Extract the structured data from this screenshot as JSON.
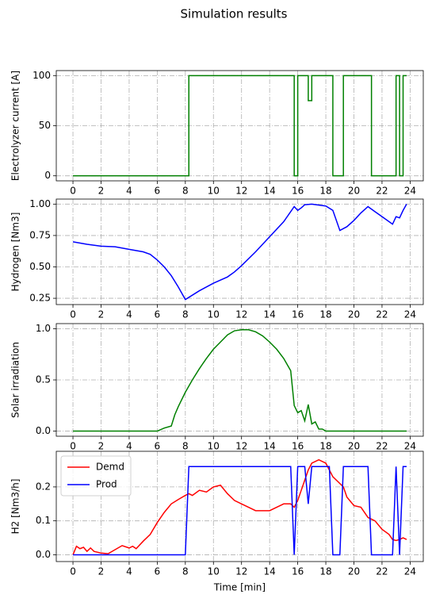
{
  "title": "Simulation results",
  "chart_data": [
    {
      "type": "step",
      "ylabel": "Electrolyzer current [A]",
      "x": [
        0,
        8.25,
        15.75,
        16.0,
        16.75,
        17.0,
        18.5,
        19.25,
        21.25,
        23.0,
        23.25,
        23.5,
        23.75
      ],
      "values": [
        0,
        100,
        0,
        100,
        75,
        100,
        0,
        100,
        0,
        100,
        0,
        100,
        100
      ],
      "color": "#008000",
      "grid": true,
      "xlim": [
        -1.1875,
        24.9375
      ],
      "xticks": [
        0,
        2,
        4,
        6,
        8,
        10,
        12,
        14,
        16,
        18,
        20,
        22,
        24
      ],
      "ylim": [
        -5,
        105
      ],
      "yticks": [
        0,
        50,
        100
      ]
    },
    {
      "type": "line",
      "ylabel": "Hydrogen [Nm3]",
      "x": [
        0,
        1,
        2,
        3,
        4,
        5,
        5.5,
        6,
        6.5,
        7,
        7.5,
        8,
        9,
        10,
        11,
        11.5,
        12,
        13,
        14,
        15,
        15.75,
        16,
        16.25,
        16.5,
        17,
        18,
        18.5,
        19,
        19.5,
        20,
        20.5,
        21,
        21.5,
        22,
        22.75,
        23,
        23.25,
        23.5,
        23.75
      ],
      "values": [
        0.7,
        0.68,
        0.665,
        0.66,
        0.64,
        0.62,
        0.6,
        0.555,
        0.5,
        0.43,
        0.34,
        0.24,
        0.31,
        0.37,
        0.42,
        0.46,
        0.51,
        0.62,
        0.74,
        0.86,
        0.98,
        0.95,
        0.97,
        0.995,
        1.0,
        0.985,
        0.95,
        0.79,
        0.82,
        0.87,
        0.93,
        0.98,
        0.94,
        0.9,
        0.84,
        0.9,
        0.89,
        0.95,
        1.0
      ],
      "color": "#0000ff",
      "grid": true,
      "xlim": [
        -1.1875,
        24.9375
      ],
      "xticks": [
        0,
        2,
        4,
        6,
        8,
        10,
        12,
        14,
        16,
        18,
        20,
        22,
        24
      ],
      "ylim": [
        0.2,
        1.04
      ],
      "yticks": [
        0.25,
        {
          "value": 0.5,
          "label": "0.50"
        },
        0.75,
        {
          "value": 1,
          "label": "1.00"
        }
      ]
    },
    {
      "type": "line",
      "ylabel": "Solar irradiation",
      "x": [
        0,
        6,
        6.5,
        7,
        7.25,
        7.5,
        8,
        8.5,
        9,
        9.5,
        10,
        10.5,
        11,
        11.5,
        12,
        12.5,
        13,
        13.5,
        14,
        14.5,
        15,
        15.5,
        15.75,
        16,
        16.25,
        16.5,
        16.75,
        17,
        17.25,
        17.5,
        17.75,
        18,
        23.75
      ],
      "values": [
        0,
        0,
        0.03,
        0.05,
        0.16,
        0.24,
        0.38,
        0.5,
        0.61,
        0.71,
        0.8,
        0.87,
        0.94,
        0.98,
        0.99,
        0.99,
        0.97,
        0.93,
        0.87,
        0.8,
        0.71,
        0.59,
        0.25,
        0.18,
        0.2,
        0.1,
        0.26,
        0.07,
        0.09,
        0.02,
        0.02,
        0,
        0
      ],
      "color": "#008000",
      "grid": true,
      "xlim": [
        -1.1875,
        24.9375
      ],
      "xticks": [
        0,
        2,
        4,
        6,
        8,
        10,
        12,
        14,
        16,
        18,
        20,
        22,
        24
      ],
      "ylim": [
        -0.05,
        1.05
      ],
      "yticks": [
        {
          "value": 0,
          "label": "0.0"
        },
        0.5,
        {
          "value": 1,
          "label": "1.0"
        }
      ]
    },
    {
      "type": "line",
      "ylabel": "H2 [Nm3/h]",
      "xlabel": "Time [min]",
      "legend": "upper left",
      "grid": true,
      "x": [
        0,
        0.25,
        0.5,
        0.75,
        1,
        1.25,
        1.5,
        2,
        2.5,
        3,
        3.5,
        4,
        4.25,
        4.5,
        5,
        5.5,
        6,
        6.5,
        7,
        7.5,
        8,
        8.25,
        8.5,
        9,
        9.5,
        10,
        10.5,
        11,
        11.5,
        12,
        12.5,
        13,
        13.5,
        14,
        14.5,
        15,
        15.5,
        15.75,
        16,
        16.5,
        16.75,
        17,
        17.5,
        18,
        18.25,
        18.5,
        19,
        19.25,
        19.5,
        20,
        20.5,
        21,
        21.25,
        21.5,
        22,
        22.5,
        22.75,
        23,
        23.25,
        23.5,
        23.75
      ],
      "series": [
        {
          "name": "Demd",
          "color": "#ff0000",
          "values": [
            0,
            0.025,
            0.018,
            0.022,
            0.01,
            0.02,
            0.01,
            0.005,
            0.003,
            0.015,
            0.027,
            0.02,
            0.025,
            0.018,
            0.04,
            0.06,
            0.095,
            0.125,
            0.15,
            0.163,
            0.175,
            0.18,
            0.175,
            0.19,
            0.185,
            0.2,
            0.205,
            0.18,
            0.16,
            0.15,
            0.14,
            0.13,
            0.13,
            0.13,
            0.14,
            0.15,
            0.15,
            0.14,
            0.16,
            0.22,
            0.25,
            0.27,
            0.28,
            0.27,
            0.25,
            0.23,
            0.21,
            0.2,
            0.17,
            0.145,
            0.14,
            0.11,
            0.105,
            0.1,
            0.075,
            0.06,
            0.045,
            0.042,
            0.045,
            0.05,
            0.045
          ]
        },
        {
          "name": "Prod",
          "color": "#0000ff",
          "values": [
            0,
            0,
            0,
            0,
            0,
            0,
            0,
            0,
            0,
            0,
            0,
            0,
            0,
            0,
            0,
            0,
            0,
            0,
            0,
            0,
            0,
            0.26,
            0.26,
            0.26,
            0.26,
            0.26,
            0.26,
            0.26,
            0.26,
            0.26,
            0.26,
            0.26,
            0.26,
            0.26,
            0.26,
            0.26,
            0.26,
            0,
            0.26,
            0.26,
            0.15,
            0.26,
            0.26,
            0.26,
            0.26,
            0,
            0,
            0.26,
            0.26,
            0.26,
            0.26,
            0.26,
            0,
            0,
            0,
            0,
            0,
            0.26,
            0,
            0.26,
            0.26
          ]
        }
      ],
      "xlim": [
        -1.1875,
        24.9375
      ],
      "xticks": [
        0,
        2,
        4,
        6,
        8,
        10,
        12,
        14,
        16,
        18,
        20,
        22,
        24
      ],
      "ylim": [
        -0.02,
        0.305
      ],
      "yticks": [
        {
          "value": 0,
          "label": "0.0"
        },
        0.1,
        0.2
      ]
    }
  ]
}
